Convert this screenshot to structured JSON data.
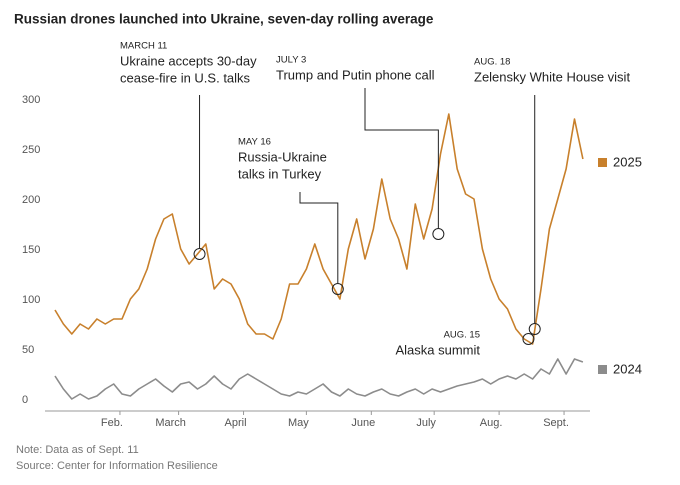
{
  "chart_data": {
    "type": "line",
    "title": "Russian drones launched into Ukraine, seven-day rolling average",
    "xlim": [
      1,
      254
    ],
    "xticks": [
      {
        "value": 32,
        "label": "Feb."
      },
      {
        "value": 60,
        "label": "March"
      },
      {
        "value": 91,
        "label": "April"
      },
      {
        "value": 121,
        "label": "May"
      },
      {
        "value": 152,
        "label": "June"
      },
      {
        "value": 182,
        "label": "July"
      },
      {
        "value": 213,
        "label": "Aug."
      },
      {
        "value": 244,
        "label": "Sept."
      }
    ],
    "ylim": [
      -5,
      330
    ],
    "yticks": [
      0,
      50,
      100,
      150,
      200,
      250,
      300
    ],
    "grid": false,
    "x": [
      1,
      5,
      9,
      13,
      17,
      21,
      25,
      29,
      33,
      37,
      41,
      45,
      49,
      53,
      57,
      61,
      65,
      69,
      73,
      77,
      81,
      85,
      89,
      93,
      97,
      101,
      105,
      109,
      113,
      117,
      121,
      125,
      129,
      133,
      137,
      141,
      145,
      149,
      153,
      157,
      161,
      165,
      169,
      173,
      177,
      181,
      185,
      189,
      193,
      197,
      201,
      205,
      209,
      213,
      217,
      221,
      225,
      229,
      233,
      237,
      241,
      245,
      249,
      253
    ],
    "series": [
      {
        "name": "2025",
        "color": "#c8802c",
        "values": [
          94,
          80,
          70,
          80,
          75,
          85,
          80,
          85,
          85,
          105,
          115,
          135,
          165,
          185,
          190,
          155,
          140,
          150,
          160,
          115,
          125,
          120,
          105,
          80,
          70,
          70,
          65,
          85,
          120,
          120,
          135,
          160,
          135,
          120,
          105,
          155,
          185,
          145,
          175,
          225,
          185,
          165,
          135,
          200,
          165,
          195,
          250,
          290,
          235,
          210,
          205,
          155,
          125,
          105,
          95,
          75,
          65,
          60,
          115,
          175,
          205,
          235,
          285,
          245
        ]
      },
      {
        "name": "2024",
        "color": "#8c8c8c",
        "values": [
          28,
          15,
          5,
          10,
          5,
          8,
          15,
          20,
          10,
          8,
          15,
          20,
          25,
          18,
          12,
          20,
          22,
          15,
          20,
          28,
          20,
          15,
          25,
          30,
          25,
          20,
          15,
          10,
          8,
          12,
          10,
          15,
          20,
          12,
          8,
          15,
          10,
          8,
          12,
          15,
          10,
          8,
          12,
          15,
          10,
          15,
          12,
          15,
          18,
          20,
          22,
          25,
          20,
          25,
          28,
          25,
          30,
          25,
          35,
          30,
          45,
          30,
          45,
          42
        ]
      }
    ],
    "annotations": [
      {
        "x": 70,
        "y": 150,
        "date": "MARCH 11",
        "text": [
          "Ukraine accepts 30-day",
          "cease-fire in U.S. talks"
        ]
      },
      {
        "x": 136,
        "y": 115,
        "date": "MAY 16",
        "text": [
          "Russia-Ukraine",
          "talks in Turkey"
        ]
      },
      {
        "x": 184,
        "y": 170,
        "date": "JULY 3",
        "text": [
          "Trump and Putin phone call"
        ]
      },
      {
        "x": 227,
        "y": 65,
        "date": "AUG. 15",
        "text": [
          "Alaska summit"
        ]
      },
      {
        "x": 230,
        "y": 75,
        "date": "AUG. 18",
        "text": [
          "Zelensky White House visit"
        ]
      }
    ],
    "note": "Note: Data as of Sept. 11",
    "source": "Source: Center for Information Resilience"
  }
}
